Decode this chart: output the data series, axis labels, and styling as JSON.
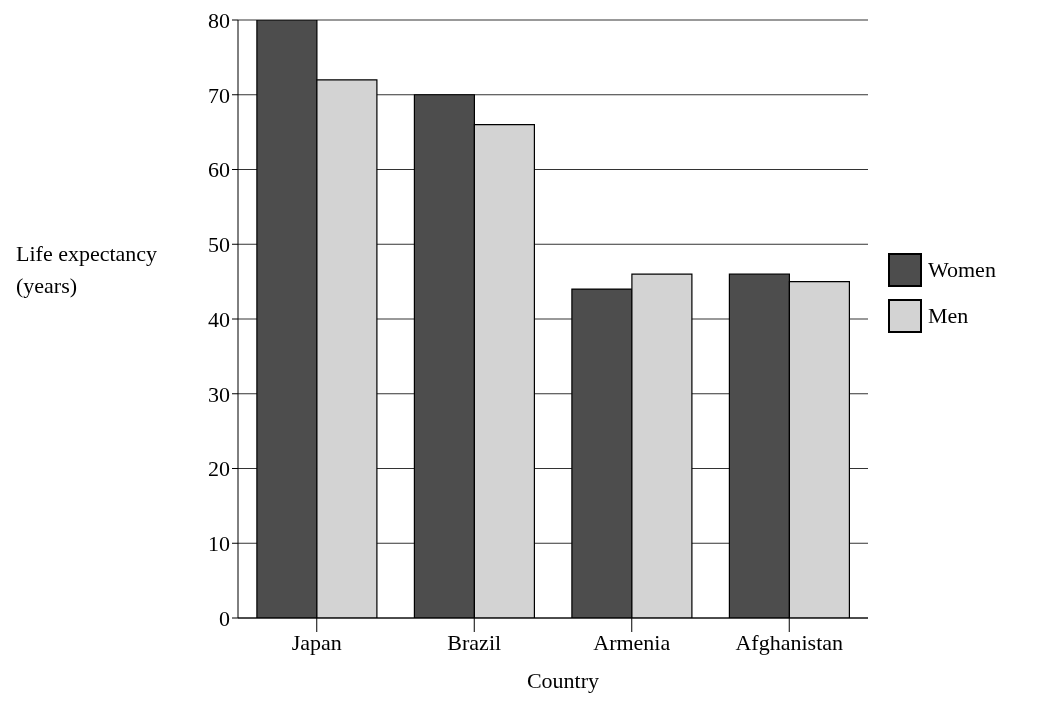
{
  "chart_data": {
    "type": "bar",
    "xlabel": "Country",
    "ylabel": "Life expectancy (years)",
    "categories": [
      "Japan",
      "Brazil",
      "Armenia",
      "Afghanistan"
    ],
    "series": [
      {
        "name": "Women",
        "color": "#4d4d4d",
        "values": [
          80,
          70,
          44,
          46
        ]
      },
      {
        "name": "Men",
        "color": "#d3d3d3",
        "values": [
          72,
          66,
          46,
          45
        ]
      }
    ],
    "ylim": [
      0,
      80
    ],
    "yticks": [
      0,
      10,
      20,
      30,
      40,
      50,
      60,
      70,
      80
    ],
    "grid": "y",
    "legend": "right"
  }
}
